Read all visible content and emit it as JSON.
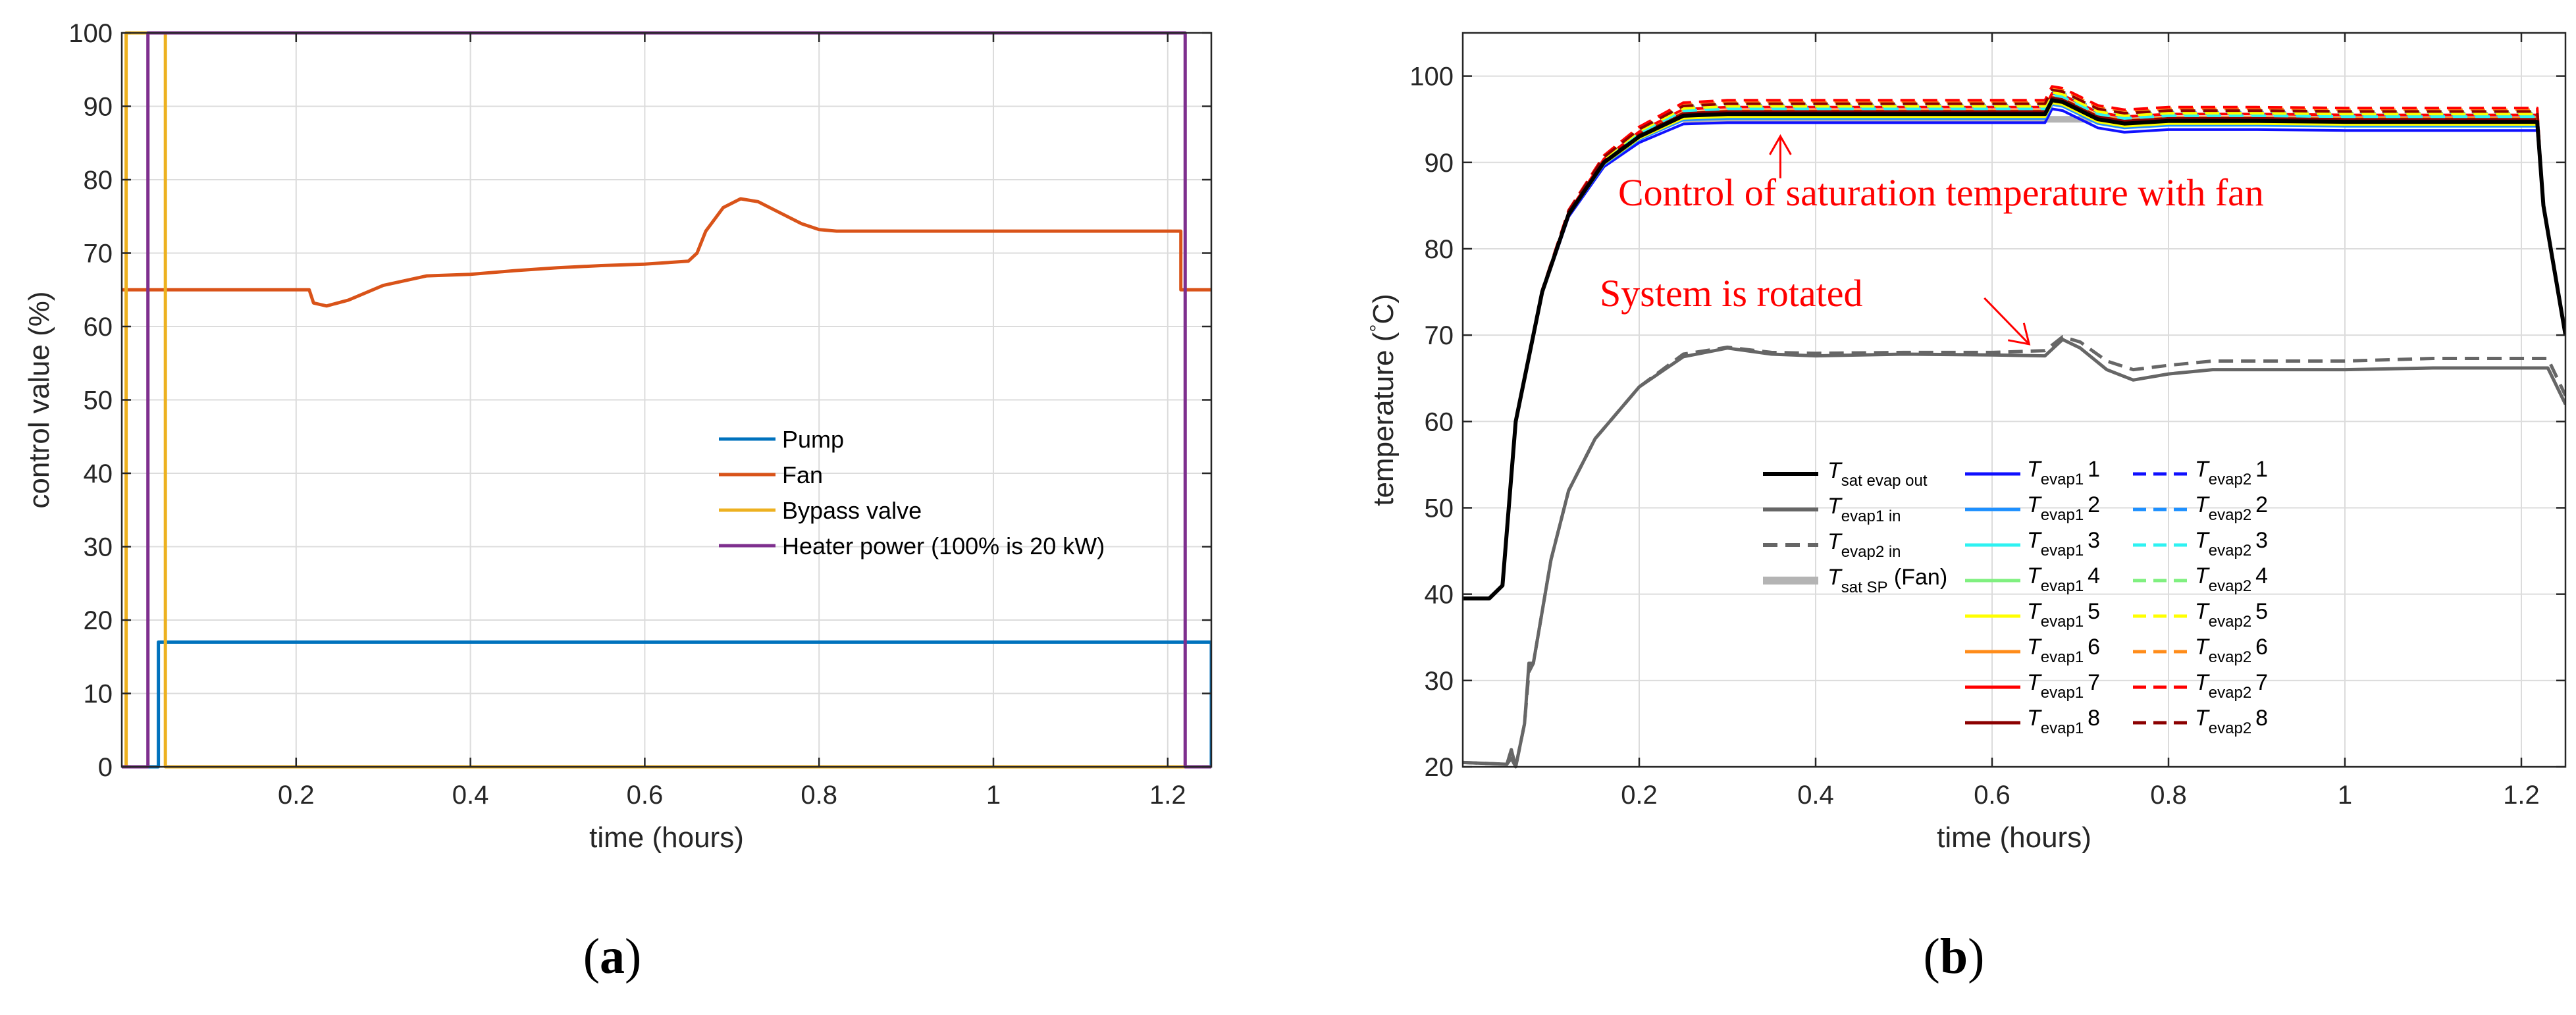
{
  "chart_data": [
    {
      "panel_label": {
        "open": "(",
        "letter": "a",
        "close": ")"
      },
      "type": "line",
      "xlabel": "time (hours)",
      "ylabel": "control value (%)",
      "xlim": [
        0,
        1.25
      ],
      "ylim": [
        0,
        100
      ],
      "xticks": [
        0.2,
        0.4,
        0.6,
        0.8,
        1,
        1.2
      ],
      "xtick_labels": [
        "0.2",
        "0.4",
        "0.6",
        "0.8",
        "1",
        "1.2"
      ],
      "yticks": [
        0,
        10,
        20,
        30,
        40,
        50,
        60,
        70,
        80,
        90,
        100
      ],
      "ytick_labels": [
        "0",
        "10",
        "20",
        "30",
        "40",
        "50",
        "60",
        "70",
        "80",
        "90",
        "100"
      ],
      "grid": true,
      "legend_position": "lower-right",
      "series": [
        {
          "name": "Pump",
          "color": "#0072BD",
          "points": [
            [
              0,
              0
            ],
            [
              0.042,
              0
            ],
            [
              0.042,
              17
            ],
            [
              1.25,
              17
            ],
            [
              1.25,
              0
            ]
          ]
        },
        {
          "name": "Fan",
          "color": "#D95319",
          "points": [
            [
              0,
              65
            ],
            [
              0.215,
              65
            ],
            [
              0.22,
              63.2
            ],
            [
              0.235,
              62.8
            ],
            [
              0.26,
              63.6
            ],
            [
              0.3,
              65.6
            ],
            [
              0.35,
              66.9
            ],
            [
              0.4,
              67.1
            ],
            [
              0.45,
              67.6
            ],
            [
              0.5,
              68.0
            ],
            [
              0.55,
              68.3
            ],
            [
              0.6,
              68.5
            ],
            [
              0.65,
              68.9
            ],
            [
              0.66,
              70.0
            ],
            [
              0.67,
              73.0
            ],
            [
              0.69,
              76.2
            ],
            [
              0.71,
              77.4
            ],
            [
              0.73,
              77.0
            ],
            [
              0.75,
              75.8
            ],
            [
              0.78,
              74.0
            ],
            [
              0.8,
              73.2
            ],
            [
              0.82,
              73.0
            ],
            [
              0.9,
              73.0
            ],
            [
              1.0,
              73.0
            ],
            [
              1.1,
              73.0
            ],
            [
              1.215,
              73.0
            ],
            [
              1.215,
              65
            ],
            [
              1.25,
              65
            ]
          ]
        },
        {
          "name": "Bypass valve",
          "color": "#EDB120",
          "points": [
            [
              0,
              0
            ],
            [
              0.005,
              0
            ],
            [
              0.005,
              100
            ],
            [
              0.05,
              100
            ],
            [
              0.05,
              0
            ],
            [
              1.25,
              0
            ]
          ]
        },
        {
          "name": "Heater power (100% is 20 kW)",
          "color": "#7E2F8E",
          "points": [
            [
              0,
              0
            ],
            [
              0.03,
              0
            ],
            [
              0.03,
              100
            ],
            [
              1.22,
              100
            ],
            [
              1.22,
              0
            ],
            [
              1.25,
              0
            ]
          ]
        }
      ]
    },
    {
      "panel_label": {
        "open": "(",
        "letter": "b",
        "close": ")"
      },
      "type": "line",
      "xlabel": "time (hours)",
      "ylabel": {
        "main": "temperature (",
        "degree": "°",
        "unit": "C)"
      },
      "xlim": [
        0,
        1.25
      ],
      "ylim": [
        20,
        105
      ],
      "xticks": [
        0.2,
        0.4,
        0.6,
        0.8,
        1,
        1.2
      ],
      "xtick_labels": [
        "0.2",
        "0.4",
        "0.6",
        "0.8",
        "1",
        "1.2"
      ],
      "yticks": [
        20,
        30,
        40,
        50,
        60,
        70,
        80,
        90,
        100
      ],
      "ytick_labels": [
        "20",
        "30",
        "40",
        "50",
        "60",
        "70",
        "80",
        "90",
        "100"
      ],
      "grid": true,
      "legend_position": "lower-center",
      "annotations": [
        {
          "text": "Control of saturation temperature with fan",
          "target": [
            0.36,
            93.5
          ]
        },
        {
          "text": "System is rotated",
          "target": [
            0.645,
            68.5
          ]
        }
      ],
      "legend": {
        "col1": [
          {
            "T": "T",
            "sub": "sat evap out",
            "suffix": "",
            "color": "#000000",
            "dash": false,
            "width": 6
          },
          {
            "T": "T",
            "sub": "evap1 in",
            "suffix": "",
            "color": "#666666",
            "dash": false,
            "width": 6
          },
          {
            "T": "T",
            "sub": "evap2 in",
            "suffix": "",
            "color": "#666666",
            "dash": true,
            "width": 6
          },
          {
            "T": "T",
            "sub": "sat SP",
            "suffix": " (Fan)",
            "color": "#B4B4B4",
            "dash": false,
            "width": 12
          }
        ],
        "evap1": {
          "T": "T",
          "sub": "evap1"
        },
        "evap2": {
          "T": "T",
          "sub": "evap2"
        },
        "numbers": [
          "1",
          "2",
          "3",
          "4",
          "5",
          "6",
          "7",
          "8"
        ],
        "colors": [
          "#1010FF",
          "#1E90FF",
          "#2EF2F2",
          "#80F080",
          "#FFFF00",
          "#FF8C1A",
          "#FF0000",
          "#8B0000"
        ]
      },
      "series": [
        {
          "name": "T_sat evap out",
          "color": "#000000",
          "dash": false,
          "points": [
            [
              0,
              39.5
            ],
            [
              0.03,
              39.5
            ],
            [
              0.045,
              41
            ],
            [
              0.06,
              60
            ],
            [
              0.09,
              75
            ],
            [
              0.12,
              84
            ],
            [
              0.16,
              90
            ],
            [
              0.2,
              93
            ],
            [
              0.25,
              95.4
            ],
            [
              0.3,
              95.6
            ],
            [
              0.4,
              95.6
            ],
            [
              0.5,
              95.6
            ],
            [
              0.6,
              95.6
            ],
            [
              0.66,
              95.6
            ],
            [
              0.668,
              97.2
            ],
            [
              0.68,
              97.0
            ],
            [
              0.7,
              96.0
            ],
            [
              0.72,
              95.0
            ],
            [
              0.75,
              94.5
            ],
            [
              0.8,
              94.8
            ],
            [
              0.9,
              94.8
            ],
            [
              1.0,
              94.7
            ],
            [
              1.1,
              94.7
            ],
            [
              1.2,
              94.7
            ],
            [
              1.218,
              94.7
            ],
            [
              1.225,
              85
            ],
            [
              1.25,
              70
            ]
          ]
        },
        {
          "name": "T_evap1 in",
          "color": "#666666",
          "dash": false,
          "points": [
            [
              0,
              20.5
            ],
            [
              0.05,
              20.3
            ],
            [
              0.055,
              22
            ],
            [
              0.06,
              20
            ],
            [
              0.07,
              25
            ],
            [
              0.075,
              32
            ],
            [
              0.08,
              32
            ],
            [
              0.09,
              38
            ],
            [
              0.1,
              44
            ],
            [
              0.12,
              52
            ],
            [
              0.15,
              58
            ],
            [
              0.2,
              64
            ],
            [
              0.25,
              67.5
            ],
            [
              0.3,
              68.5
            ],
            [
              0.35,
              67.8
            ],
            [
              0.4,
              67.6
            ],
            [
              0.5,
              67.8
            ],
            [
              0.6,
              67.7
            ],
            [
              0.66,
              67.6
            ],
            [
              0.68,
              69.5
            ],
            [
              0.7,
              68.5
            ],
            [
              0.73,
              66
            ],
            [
              0.76,
              64.8
            ],
            [
              0.8,
              65.5
            ],
            [
              0.85,
              66
            ],
            [
              0.9,
              66
            ],
            [
              1.0,
              66
            ],
            [
              1.1,
              66.2
            ],
            [
              1.2,
              66.2
            ],
            [
              1.23,
              66.2
            ],
            [
              1.25,
              62
            ]
          ]
        },
        {
          "name": "T_evap2 in",
          "color": "#666666",
          "dash": true,
          "points": [
            [
              0,
              20.5
            ],
            [
              0.05,
              20.3
            ],
            [
              0.055,
              21
            ],
            [
              0.06,
              20
            ],
            [
              0.07,
              25
            ],
            [
              0.075,
              31
            ],
            [
              0.08,
              32
            ],
            [
              0.09,
              38
            ],
            [
              0.1,
              44
            ],
            [
              0.12,
              52
            ],
            [
              0.15,
              58
            ],
            [
              0.2,
              64
            ],
            [
              0.25,
              67.8
            ],
            [
              0.3,
              68.6
            ],
            [
              0.35,
              68
            ],
            [
              0.4,
              67.9
            ],
            [
              0.5,
              68
            ],
            [
              0.6,
              68
            ],
            [
              0.66,
              68.2
            ],
            [
              0.68,
              69.8
            ],
            [
              0.7,
              69.2
            ],
            [
              0.73,
              67
            ],
            [
              0.76,
              66
            ],
            [
              0.8,
              66.5
            ],
            [
              0.85,
              67
            ],
            [
              0.9,
              67
            ],
            [
              1.0,
              67
            ],
            [
              1.1,
              67.3
            ],
            [
              1.2,
              67.3
            ],
            [
              1.23,
              67.3
            ],
            [
              1.25,
              63
            ]
          ]
        },
        {
          "name": "T_sat SP (Fan)",
          "color": "#B4B4B4",
          "dash": false,
          "width": 10,
          "points": [
            [
              0.25,
              95
            ],
            [
              0.3,
              95
            ],
            [
              0.4,
              95
            ],
            [
              0.5,
              95
            ],
            [
              0.6,
              95
            ],
            [
              0.7,
              95
            ],
            [
              0.8,
              95
            ],
            [
              0.9,
              95
            ],
            [
              1.0,
              95
            ],
            [
              1.1,
              95
            ],
            [
              1.2,
              95
            ],
            [
              1.22,
              95
            ]
          ]
        }
      ],
      "evap_offsets": {
        "evap1": [
          -1.0,
          -0.5,
          0.2,
          0.0,
          -0.3,
          0.4,
          0.8,
          0.3
        ],
        "evap2": [
          1.0,
          0.8,
          0.6,
          1.1,
          0.9,
          1.4,
          1.6,
          1.2
        ]
      }
    }
  ]
}
